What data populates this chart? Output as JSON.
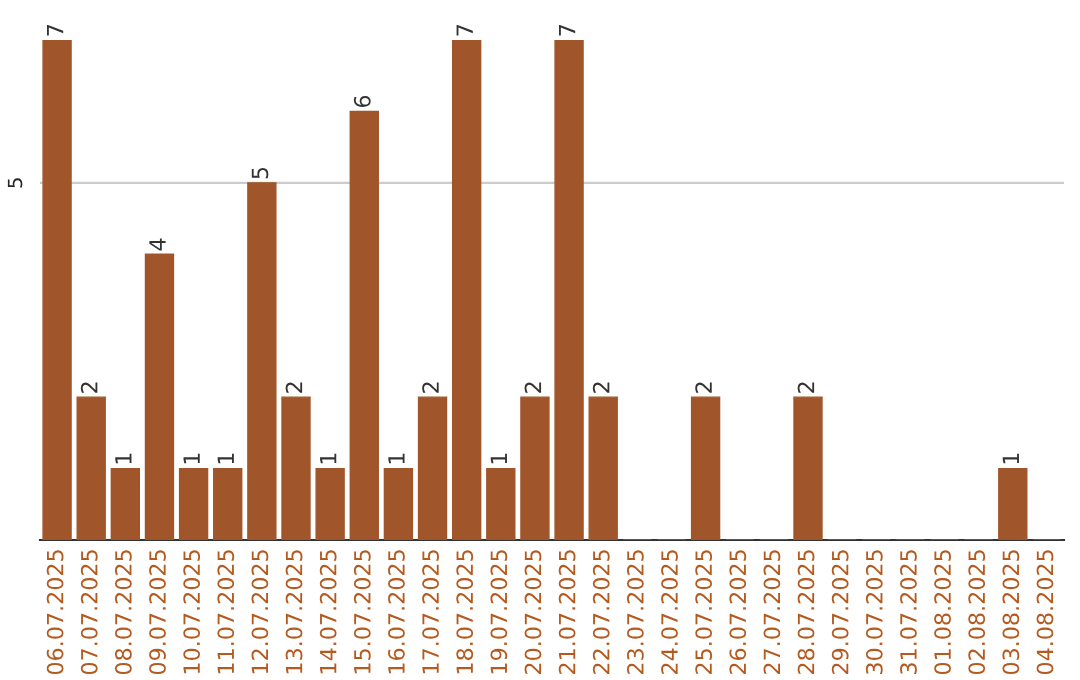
{
  "chart_data": {
    "type": "bar",
    "categories": [
      "06.07.2025",
      "07.07.2025",
      "08.07.2025",
      "09.07.2025",
      "10.07.2025",
      "11.07.2025",
      "12.07.2025",
      "13.07.2025",
      "14.07.2025",
      "15.07.2025",
      "16.07.2025",
      "17.07.2025",
      "18.07.2025",
      "19.07.2025",
      "20.07.2025",
      "21.07.2025",
      "22.07.2025",
      "23.07.2025",
      "24.07.2025",
      "25.07.2025",
      "26.07.2025",
      "27.07.2025",
      "28.07.2025",
      "29.07.2025",
      "30.07.2025",
      "31.07.2025",
      "01.08.2025",
      "02.08.2025",
      "03.08.2025",
      "04.08.2025"
    ],
    "values": [
      7,
      2,
      1,
      4,
      1,
      1,
      5,
      2,
      1,
      6,
      1,
      2,
      7,
      1,
      2,
      7,
      2,
      0,
      0,
      2,
      0,
      0,
      2,
      0,
      0,
      0,
      0,
      0,
      1,
      0
    ],
    "value_labels": [
      "7",
      "2",
      "1",
      "4",
      "1",
      "1",
      "5",
      "2",
      "1",
      "6",
      "1",
      "2",
      "7",
      "1",
      "2",
      "7",
      "2",
      null,
      null,
      "2",
      null,
      null,
      "2",
      null,
      null,
      null,
      null,
      null,
      "1",
      null
    ],
    "color": "#a0562a",
    "ylim": [
      0,
      7
    ],
    "yticks": [
      5
    ],
    "grid": "y"
  }
}
